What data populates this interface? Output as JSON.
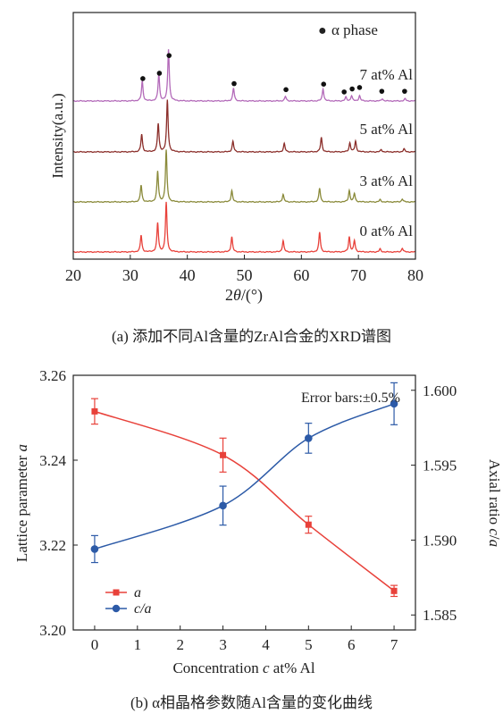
{
  "chart_data": [
    {
      "type": "line",
      "panel": "a",
      "xlabel": "2θ/(°)",
      "ylabel": "Intensity(a.u.)",
      "xlim": [
        20,
        80
      ],
      "xticks": [
        20,
        30,
        40,
        50,
        60,
        70,
        80
      ],
      "legend": {
        "marker": "●",
        "label": "α phase",
        "placement": "top-right"
      },
      "peak_positions_2theta": [
        31.9,
        34.8,
        36.5,
        47.9,
        56.9,
        63.3,
        68.3,
        69.2
      ],
      "series": [
        {
          "name": "0 at% Al",
          "color": "#e8413a",
          "peaks": [
            [
              31.9,
              22
            ],
            [
              34.8,
              38
            ],
            [
              36.3,
              65
            ],
            [
              47.8,
              20
            ],
            [
              56.8,
              15
            ],
            [
              63.2,
              26
            ],
            [
              68.4,
              20
            ],
            [
              69.3,
              15
            ],
            [
              73.8,
              4
            ],
            [
              77.7,
              5
            ]
          ]
        },
        {
          "name": "3 at% Al",
          "color": "#8a8a3a",
          "peaks": [
            [
              31.9,
              22
            ],
            [
              34.8,
              40
            ],
            [
              36.3,
              68
            ],
            [
              47.8,
              15
            ],
            [
              56.8,
              10
            ],
            [
              63.2,
              18
            ],
            [
              68.4,
              15
            ],
            [
              69.3,
              11
            ],
            [
              73.8,
              3
            ],
            [
              77.7,
              4
            ]
          ]
        },
        {
          "name": "5 at% Al",
          "color": "#8b2e2a",
          "peaks": [
            [
              32.0,
              23
            ],
            [
              34.9,
              37
            ],
            [
              36.5,
              68
            ],
            [
              48.0,
              14
            ],
            [
              57.0,
              11
            ],
            [
              63.5,
              19
            ],
            [
              68.5,
              12
            ],
            [
              69.5,
              14
            ],
            [
              74.0,
              3
            ],
            [
              78.0,
              4
            ]
          ]
        },
        {
          "name": "7 at% Al",
          "color": "#b36ab9",
          "peaks": [
            [
              32.1,
              26
            ],
            [
              35.0,
              35
            ],
            [
              36.7,
              68
            ],
            [
              48.1,
              17
            ],
            [
              57.2,
              6
            ],
            [
              63.8,
              16
            ],
            [
              67.8,
              5
            ],
            [
              68.8,
              7
            ],
            [
              70.2,
              7
            ],
            [
              74.2,
              3
            ],
            [
              78.2,
              3
            ]
          ]
        }
      ],
      "alpha_phase_markers_2theta": [
        32.2,
        35.1,
        36.8,
        48.2,
        57.3,
        63.9,
        67.5,
        68.9,
        70.2,
        74.1,
        78.1
      ]
    },
    {
      "type": "line",
      "panel": "b",
      "xlabel": "Concentration c at% Al",
      "ylabel_left": "Lattice parameter a",
      "ylabel_right": "Axial ratio c/a",
      "xlim": [
        -0.5,
        7.5
      ],
      "xticks": [
        0,
        1,
        2,
        3,
        4,
        5,
        6,
        7
      ],
      "ylim_left": [
        3.2,
        3.26
      ],
      "yticks_left": [
        "3.20",
        "3.22",
        "3.24",
        "3.26"
      ],
      "ylim_right": [
        1.584,
        1.601
      ],
      "yticks_right": [
        "1.585",
        "1.590",
        "1.595",
        "1.600"
      ],
      "annotation": "Error bars:±0.5%",
      "legend_placement": "bottom-left",
      "series": [
        {
          "name": "a",
          "axis": "left",
          "color": "#e8413a",
          "marker": "square",
          "x": [
            0,
            3,
            5,
            7
          ],
          "y": [
            3.2515,
            3.2412,
            3.2248,
            3.2092
          ],
          "err": [
            0.003,
            0.004,
            0.002,
            0.0013
          ]
        },
        {
          "name": "c/a",
          "axis": "right",
          "color": "#2c5aa7",
          "marker": "circle",
          "x": [
            0,
            3,
            5,
            7
          ],
          "y": [
            1.5894,
            1.5923,
            1.5968,
            1.5991
          ],
          "err": [
            0.0009,
            0.0013,
            0.001,
            0.0014
          ]
        }
      ]
    }
  ],
  "captions": {
    "a": "(a) 添加不同Al含量的ZrAl合金的XRD谱图",
    "b": "(b) α相晶格参数随Al含量的变化曲线"
  }
}
